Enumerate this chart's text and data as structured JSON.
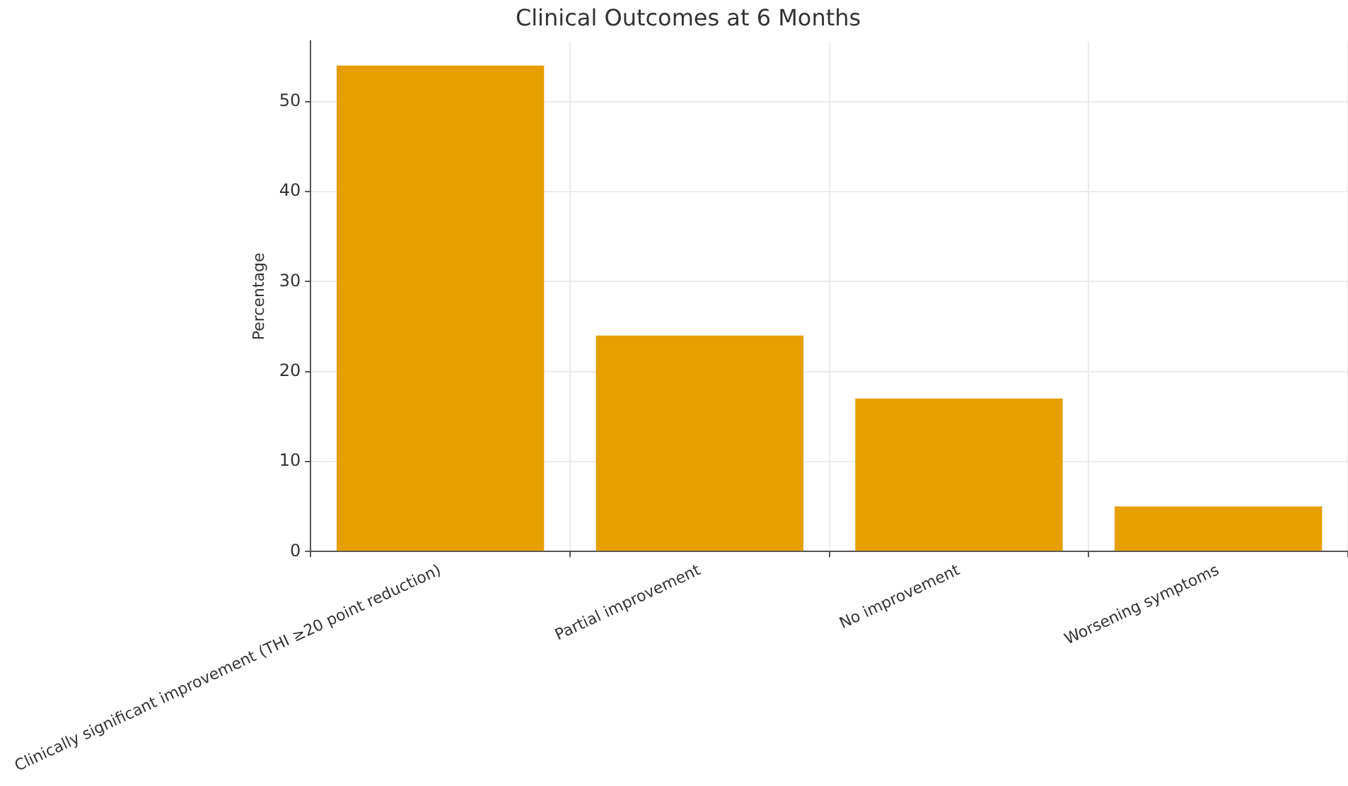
{
  "chart_data": {
    "type": "bar",
    "title": "Clinical Outcomes at 6 Months",
    "ylabel": "Percentage",
    "categories": [
      "Clinically significant improvement (THI ≥20 point reduction)",
      "Partial improvement",
      "No improvement",
      "Worsening symptoms"
    ],
    "values": [
      54,
      24,
      17,
      5
    ],
    "color": "#e69f00",
    "ylim": [
      0,
      56.7
    ],
    "yticks": [
      0,
      10,
      20,
      30,
      40,
      50
    ],
    "grid": true
  }
}
